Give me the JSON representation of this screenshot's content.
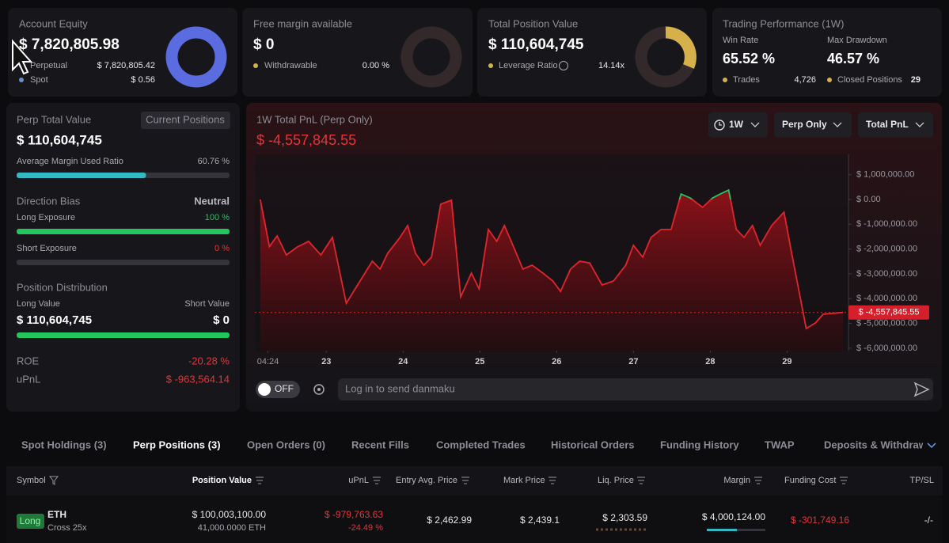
{
  "cards": {
    "account_equity": {
      "title": "Account Equity",
      "value": "$ 7,820,805.98",
      "rows": [
        {
          "label": "Perpetual",
          "value": "$ 7,820,805.42"
        },
        {
          "label": "Spot",
          "value": "$ 0.56"
        }
      ]
    },
    "free_margin": {
      "title": "Free margin available",
      "value": "$ 0",
      "rows": [
        {
          "label": "Withdrawable",
          "value": "0.00 %"
        }
      ]
    },
    "position_value": {
      "title": "Total Position Value",
      "value": "$ 110,604,745",
      "rows": [
        {
          "label": "Leverage Ratio",
          "value": "14.14x"
        }
      ]
    },
    "performance": {
      "title": "Trading Performance (1W)",
      "win_rate_label": "Win Rate",
      "win_rate": "65.52 %",
      "drawdown_label": "Max Drawdown",
      "drawdown": "46.57 %",
      "trades_label": "Trades",
      "trades": "4,726",
      "closed_label": "Closed Positions",
      "closed": "29"
    }
  },
  "perp_panel": {
    "title": "Perp Total Value",
    "button": "Current Positions",
    "value": "$ 110,604,745",
    "margin_label": "Average Margin Used Ratio",
    "margin_ratio": {
      "value": 60.76,
      "label": "60.76 %"
    },
    "bias_label": "Direction Bias",
    "bias": "Neutral",
    "long_label": "Long Exposure",
    "long_exposure": {
      "value": 100,
      "label": "100 %"
    },
    "short_label": "Short Exposure",
    "short_exposure": {
      "value": 0,
      "label": "0 %"
    },
    "distribution_label": "Position Distribution",
    "long_value_label": "Long Value",
    "short_value_label": "Short Value",
    "long_value": "$ 110,604,745",
    "short_value": "$ 0",
    "roe_label": "ROE",
    "roe": "-20.28 %",
    "upnl_label": "uPnL",
    "upnl": "$ -963,564.14"
  },
  "chart_data": {
    "type": "line",
    "title": "1W Total PnL (Perp Only)",
    "subtitle": "$ -4,557,845.55",
    "color": "#e0252d",
    "positive_color": "#22c55e",
    "x": [
      22.14,
      22.26,
      22.36,
      22.48,
      22.62,
      22.77,
      22.93,
      23.08,
      23.26,
      23.44,
      23.6,
      23.7,
      23.8,
      23.96,
      24.06,
      24.16,
      24.27,
      24.37,
      24.49,
      24.63,
      24.75,
      24.89,
      24.99,
      25.11,
      25.22,
      25.32,
      25.43,
      25.56,
      25.68,
      25.82,
      25.95,
      26.05,
      26.18,
      26.3,
      26.43,
      26.59,
      26.74,
      26.9,
      27.0,
      27.12,
      27.23,
      27.36,
      27.49,
      27.62,
      27.74,
      27.9,
      28.03,
      28.13,
      28.24,
      28.34,
      28.44,
      28.55,
      28.65,
      28.8,
      28.96,
      29.06,
      29.16,
      29.25,
      29.37,
      29.47,
      29.73
    ],
    "values": [
      0,
      -1900000,
      -1470000,
      -2240000,
      -1920000,
      -1690000,
      -2240000,
      -1530000,
      -4190000,
      -3290000,
      -2490000,
      -2810000,
      -2170000,
      -1530000,
      -1050000,
      -2170000,
      -2650000,
      -2330000,
      -190000,
      -30000,
      -3930000,
      -2970000,
      -3610000,
      -1210000,
      -1690000,
      -1050000,
      -1850000,
      -2810000,
      -2650000,
      -2970000,
      -3290000,
      -3710000,
      -2810000,
      -2490000,
      -2560000,
      -3450000,
      -3290000,
      -2650000,
      -1850000,
      -2330000,
      -1530000,
      -1210000,
      -1210000,
      220000,
      60000,
      -320000,
      60000,
      220000,
      380000,
      -1210000,
      -1530000,
      -1050000,
      -1850000,
      -1050000,
      -510000,
      -2170000,
      -3770000,
      -5210000,
      -4980000,
      -4630000,
      -4557845.55
    ],
    "xlim": [
      22.07,
      29.8
    ],
    "xticks": [
      {
        "value": 22.24,
        "label": "04:24"
      },
      23,
      24,
      25,
      26,
      27,
      28,
      29
    ],
    "ylim": [
      -6100000,
      1820000
    ],
    "yticks": [
      {
        "value": 1000000,
        "label": "$ 1,000,000.00"
      },
      {
        "value": 0,
        "label": "$ 0.00"
      },
      {
        "value": -1000000,
        "label": "$ -1,000,000.00"
      },
      {
        "value": -2000000,
        "label": "$ -2,000,000.00"
      },
      {
        "value": -3000000,
        "label": "$ -3,000,000.00"
      },
      {
        "value": -4000000,
        "label": "$ -4,000,000.00"
      },
      {
        "value": -5000000,
        "label": "$ -5,000,000.00"
      },
      {
        "value": -6000000,
        "label": "$ -6,000,000.00"
      }
    ]
  },
  "chart_controls": [
    "1W",
    "Perp Only",
    "Total PnL"
  ],
  "danmaku": {
    "toggle": "OFF",
    "placeholder": "Log in to send danmaku"
  },
  "tabs": [
    "Spot Holdings (3)",
    "Perp Positions (3)",
    "Open Orders (0)",
    "Recent Fills",
    "Completed Trades",
    "Historical Orders",
    "Funding History",
    "TWAP",
    "Deposits & Withdraw"
  ],
  "table": {
    "headers": [
      "Symbol",
      "Position Value",
      "uPnL",
      "Entry Avg. Price",
      "Mark Price",
      "Liq. Price",
      "Margin",
      "Funding Cost",
      "TP/SL"
    ],
    "rows": [
      {
        "side": "Long",
        "symbol": "ETH",
        "mode": "Cross 25x",
        "position_value": "$ 100,003,100.00",
        "size": "41,000.0000 ETH",
        "upnl": "$ -979,763.63",
        "upnl_pct": "-24.49 %",
        "entry": "$ 2,462.99",
        "mark": "$ 2,439.1",
        "liq": "$ 2,303.59",
        "margin": "$ 4,000,124.00",
        "funding": "$ -301,749.16",
        "tpsl": "-/-"
      }
    ]
  }
}
